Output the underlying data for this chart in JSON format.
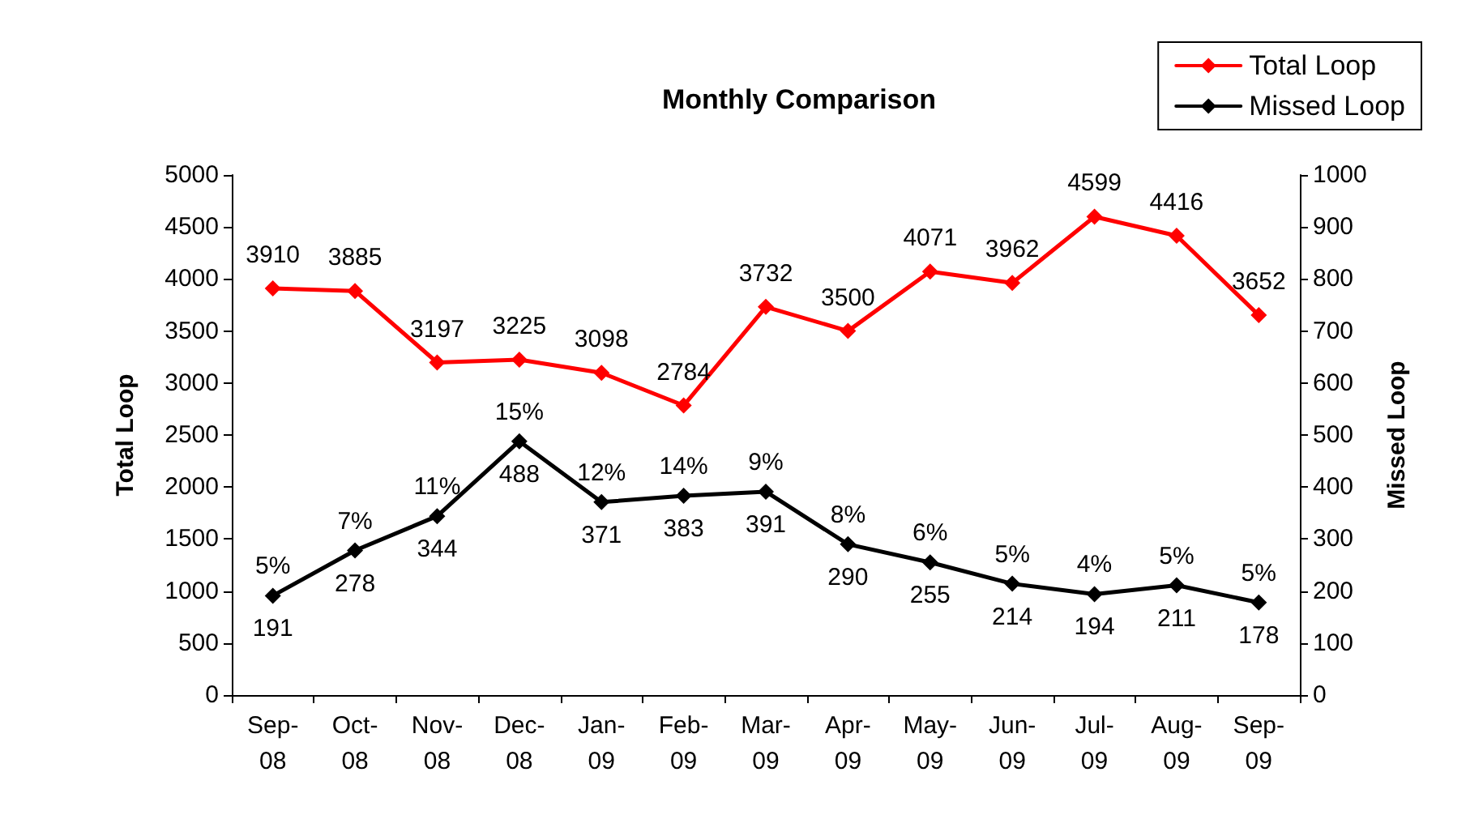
{
  "chart_data": {
    "type": "line",
    "title": "Monthly Comparison",
    "ylabel": "Total Loop",
    "y2label": "Missed Loop",
    "categories": [
      "Sep-08",
      "Oct-08",
      "Nov-08",
      "Dec-08",
      "Jan-09",
      "Feb-09",
      "Mar-09",
      "Apr-09",
      "May-09",
      "Jun-09",
      "Jul-09",
      "Aug-09",
      "Sep-09"
    ],
    "series": [
      {
        "name": "Total Loop",
        "color": "#ff0000",
        "values": [
          3910,
          3885,
          3197,
          3225,
          3098,
          2784,
          3732,
          3500,
          4071,
          3962,
          4599,
          4416,
          3652
        ]
      },
      {
        "name": "Missed Loop",
        "color": "#000000",
        "axis": "y2",
        "values": [
          191,
          278,
          344,
          488,
          371,
          383,
          391,
          290,
          255,
          214,
          194,
          211,
          178
        ]
      }
    ],
    "ylim": [
      0,
      5000
    ],
    "yticks": [
      0,
      500,
      1000,
      1500,
      2000,
      2500,
      3000,
      3500,
      4000,
      4500,
      5000
    ],
    "y2lim": [
      0,
      1000
    ],
    "y2ticks": [
      0,
      100,
      200,
      300,
      400,
      500,
      600,
      700,
      800,
      900,
      1000
    ],
    "annotations": [
      "5%",
      "7%",
      "11%",
      "15%",
      "12%",
      "14%",
      "9%",
      "8%",
      "6%",
      "5%",
      "4%",
      "5%",
      "5%"
    ],
    "data_labels": true,
    "grid": false,
    "legend": "top right",
    "marker": "diamond",
    "line_style": "solid"
  }
}
